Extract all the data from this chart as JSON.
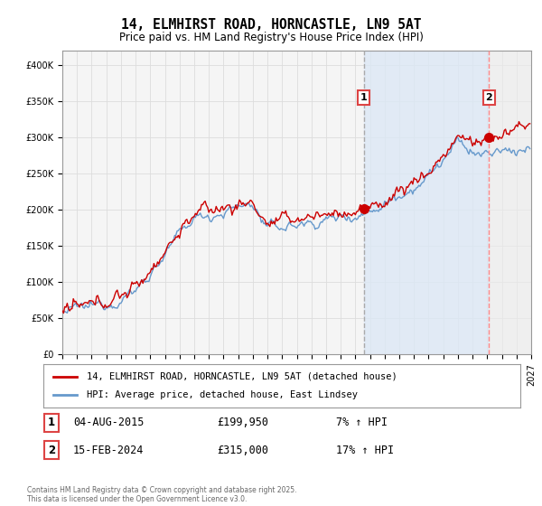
{
  "title": "14, ELMHIRST ROAD, HORNCASTLE, LN9 5AT",
  "subtitle": "Price paid vs. HM Land Registry's House Price Index (HPI)",
  "legend_line1": "14, ELMHIRST ROAD, HORNCASTLE, LN9 5AT (detached house)",
  "legend_line2": "HPI: Average price, detached house, East Lindsey",
  "transaction1_label": "1",
  "transaction1_date": "04-AUG-2015",
  "transaction1_price": "£199,950",
  "transaction1_hpi": "7% ↑ HPI",
  "transaction2_label": "2",
  "transaction2_date": "15-FEB-2024",
  "transaction2_price": "£315,000",
  "transaction2_hpi": "17% ↑ HPI",
  "footnote": "Contains HM Land Registry data © Crown copyright and database right 2025.\nThis data is licensed under the Open Government Licence v3.0.",
  "hpi_color": "#6699cc",
  "hpi_fill_color": "#dce8f5",
  "price_color": "#cc0000",
  "vline1_color": "#aaaaaa",
  "vline2_color": "#ff8888",
  "background_color": "#f5f5f5",
  "grid_color": "#dddddd",
  "label_box_color": "#dd4444",
  "ylim": [
    0,
    420000
  ],
  "yticks": [
    0,
    50000,
    100000,
    150000,
    200000,
    250000,
    300000,
    350000,
    400000
  ],
  "xstart_year": 1995,
  "xend_year": 2027,
  "transaction1_year": 2015.58,
  "transaction2_year": 2024.12,
  "transaction1_price_val": 199950,
  "transaction2_price_val": 315000
}
